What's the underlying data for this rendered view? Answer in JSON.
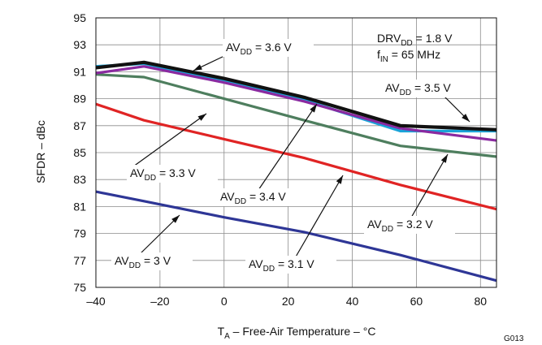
{
  "chart_data": {
    "type": "line",
    "xlabel": "T_A – Free-Air Temperature – °C",
    "ylabel": "SFDR – dBc",
    "xlim": [
      -40,
      85
    ],
    "ylim": [
      75,
      95
    ],
    "x_ticks": [
      "–40",
      "–20",
      "0",
      "20",
      "40",
      "60",
      "80"
    ],
    "x_tick_values": [
      -40,
      -20,
      0,
      20,
      40,
      60,
      80
    ],
    "y_ticks": [
      "75",
      "77",
      "79",
      "81",
      "83",
      "85",
      "87",
      "89",
      "91",
      "93",
      "95"
    ],
    "y_tick_values": [
      75,
      77,
      79,
      81,
      83,
      85,
      87,
      89,
      91,
      93,
      95
    ],
    "grid": true,
    "legend": "none",
    "figure_code": "G013",
    "conditions": [
      {
        "sym": "DRV",
        "sub": "DD",
        "rest": " = 1.8 V"
      },
      {
        "sym": "f",
        "sub": "IN",
        "rest": " = 65 MHz"
      }
    ],
    "series": [
      {
        "key": "av3_6",
        "label_sym": "AV",
        "label_sub": "DD",
        "label_rest": " = 3.6 V",
        "color": "#111111",
        "x": [
          -40,
          -25,
          0,
          25,
          55,
          85
        ],
        "y": [
          91.3,
          91.7,
          90.5,
          89.1,
          87.0,
          86.7
        ]
      },
      {
        "key": "av3_5",
        "label_sym": "AV",
        "label_sub": "DD",
        "label_rest": " = 3.5 V",
        "color": "#1aa3d8",
        "x": [
          -40,
          -25,
          0,
          25,
          55,
          85
        ],
        "y": [
          91.4,
          91.6,
          90.3,
          88.9,
          86.6,
          86.6
        ]
      },
      {
        "key": "av3_4",
        "label_sym": "AV",
        "label_sub": "DD",
        "label_rest": " = 3.4 V",
        "color": "#8a2aa0",
        "x": [
          -40,
          -25,
          0,
          25,
          55,
          85
        ],
        "y": [
          90.9,
          91.4,
          90.2,
          88.8,
          86.8,
          85.9
        ]
      },
      {
        "key": "av3_3",
        "label_sym": "AV",
        "label_sub": "DD",
        "label_rest": " = 3.3 V",
        "color": "#4e7e5e",
        "x": [
          -40,
          -25,
          0,
          25,
          55,
          85
        ],
        "y": [
          90.8,
          90.6,
          89.0,
          87.4,
          85.5,
          84.7
        ]
      },
      {
        "key": "av3_2",
        "label_sym": "AV",
        "label_sub": "DD",
        "label_rest": " = 3.2 V",
        "color": "#e02424",
        "x": [
          -40,
          -25,
          0,
          25,
          55,
          85
        ],
        "y": [
          88.6,
          87.4,
          86.0,
          84.6,
          82.6,
          80.8
        ]
      },
      {
        "key": "av3_1",
        "label_sym": "AV",
        "label_sub": "DD",
        "label_rest": " = 3.1 V",
        "color": "#e02424",
        "x": [],
        "y": []
      },
      {
        "key": "av3_0",
        "label_sym": "AV",
        "label_sub": "DD",
        "label_rest": " = 3 V",
        "color": "#2e3696",
        "x": [
          -40,
          -25,
          0,
          25,
          55,
          85
        ],
        "y": [
          82.1,
          81.4,
          80.2,
          79.1,
          77.4,
          75.5
        ]
      }
    ]
  }
}
